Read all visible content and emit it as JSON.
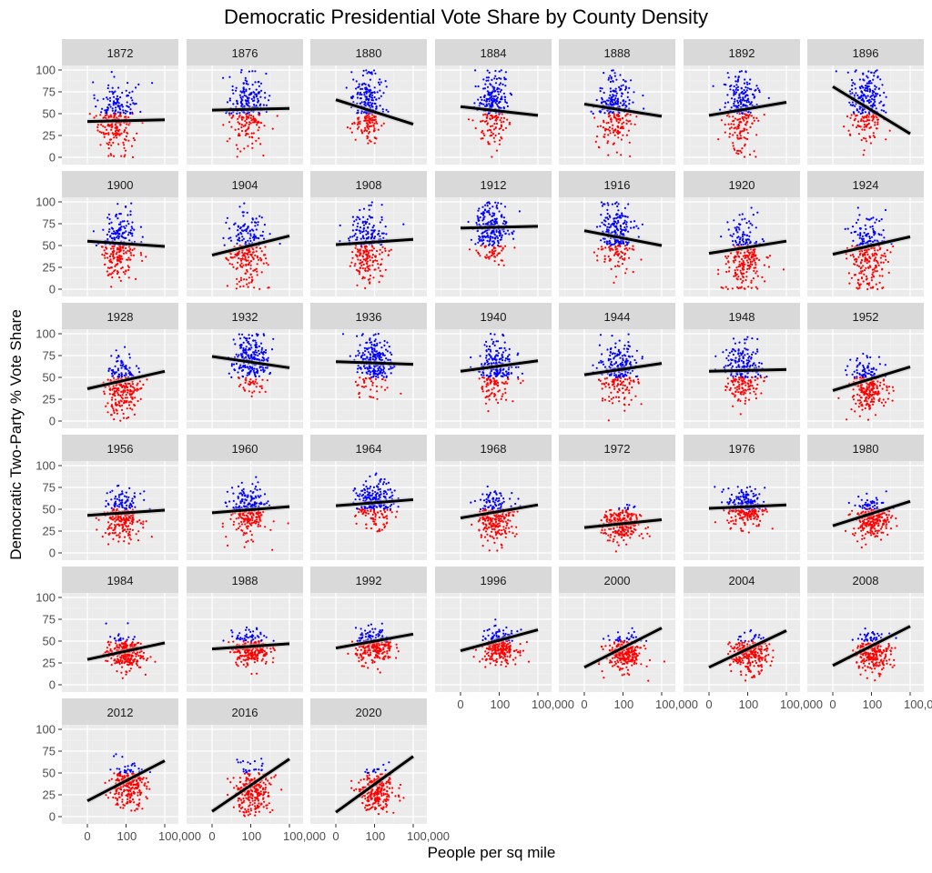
{
  "chart_data": {
    "type": "scatter",
    "title": "Democratic Presidential Vote Share by County Density",
    "xlabel": "People per sq mile",
    "ylabel": "Democratic Two-Party % Vote Share",
    "x_scale": "log",
    "x_ticks": [
      "0",
      "100",
      "100,000"
    ],
    "y_ticks": [
      "0",
      "25",
      "50",
      "75",
      "100"
    ],
    "ylim": [
      0,
      100
    ],
    "grid": true,
    "facet_by": "year",
    "facet_columns": 7,
    "point_colors": {
      "above_50": "#0000ff",
      "below_50": "#ff0000"
    },
    "line_color": "#000000",
    "strip_background": "#d9d9d9",
    "panel_background": "#ebebeb",
    "legend": "none",
    "panels": [
      {
        "year": "1872",
        "fit_start": 41,
        "fit_end": 43,
        "x_center": 0.38,
        "x_spread": 0.12,
        "y_center": 45,
        "y_spread": 25
      },
      {
        "year": "1876",
        "fit_start": 54,
        "fit_end": 56,
        "x_center": 0.45,
        "x_spread": 0.12,
        "y_center": 55,
        "y_spread": 25
      },
      {
        "year": "1880",
        "fit_start": 66,
        "fit_end": 38,
        "x_center": 0.4,
        "x_spread": 0.1,
        "y_center": 58,
        "y_spread": 25
      },
      {
        "year": "1884",
        "fit_start": 58,
        "fit_end": 48,
        "x_center": 0.42,
        "x_spread": 0.1,
        "y_center": 58,
        "y_spread": 24
      },
      {
        "year": "1888",
        "fit_start": 61,
        "fit_end": 47,
        "x_center": 0.4,
        "x_spread": 0.11,
        "y_center": 57,
        "y_spread": 24
      },
      {
        "year": "1892",
        "fit_start": 48,
        "fit_end": 63,
        "x_center": 0.4,
        "x_spread": 0.11,
        "y_center": 55,
        "y_spread": 28
      },
      {
        "year": "1896",
        "fit_start": 81,
        "fit_end": 27,
        "x_center": 0.45,
        "x_spread": 0.12,
        "y_center": 58,
        "y_spread": 26
      },
      {
        "year": "1900",
        "fit_start": 55,
        "fit_end": 49,
        "x_center": 0.4,
        "x_spread": 0.12,
        "y_center": 50,
        "y_spread": 24
      },
      {
        "year": "1904",
        "fit_start": 39,
        "fit_end": 61,
        "x_center": 0.45,
        "x_spread": 0.12,
        "y_center": 45,
        "y_spread": 26
      },
      {
        "year": "1908",
        "fit_start": 51,
        "fit_end": 57,
        "x_center": 0.42,
        "x_spread": 0.12,
        "y_center": 50,
        "y_spread": 24
      },
      {
        "year": "1912",
        "fit_start": 70,
        "fit_end": 72,
        "x_center": 0.4,
        "x_spread": 0.11,
        "y_center": 68,
        "y_spread": 22
      },
      {
        "year": "1916",
        "fit_start": 67,
        "fit_end": 50,
        "x_center": 0.42,
        "x_spread": 0.11,
        "y_center": 60,
        "y_spread": 24
      },
      {
        "year": "1920",
        "fit_start": 41,
        "fit_end": 55,
        "x_center": 0.45,
        "x_spread": 0.12,
        "y_center": 40,
        "y_spread": 24
      },
      {
        "year": "1924",
        "fit_start": 40,
        "fit_end": 60,
        "x_center": 0.45,
        "x_spread": 0.12,
        "y_center": 42,
        "y_spread": 25
      },
      {
        "year": "1928",
        "fit_start": 37,
        "fit_end": 57,
        "x_center": 0.45,
        "x_spread": 0.12,
        "y_center": 38,
        "y_spread": 20
      },
      {
        "year": "1932",
        "fit_start": 74,
        "fit_end": 61,
        "x_center": 0.5,
        "x_spread": 0.12,
        "y_center": 68,
        "y_spread": 20
      },
      {
        "year": "1936",
        "fit_start": 68,
        "fit_end": 65,
        "x_center": 0.5,
        "x_spread": 0.12,
        "y_center": 66,
        "y_spread": 20
      },
      {
        "year": "1940",
        "fit_start": 57,
        "fit_end": 69,
        "x_center": 0.45,
        "x_spread": 0.12,
        "y_center": 58,
        "y_spread": 22
      },
      {
        "year": "1944",
        "fit_start": 53,
        "fit_end": 66,
        "x_center": 0.45,
        "x_spread": 0.12,
        "y_center": 56,
        "y_spread": 22
      },
      {
        "year": "1948",
        "fit_start": 57,
        "fit_end": 59,
        "x_center": 0.45,
        "x_spread": 0.12,
        "y_center": 55,
        "y_spread": 20
      },
      {
        "year": "1952",
        "fit_start": 35,
        "fit_end": 62,
        "x_center": 0.45,
        "x_spread": 0.12,
        "y_center": 40,
        "y_spread": 18
      },
      {
        "year": "1956",
        "fit_start": 43,
        "fit_end": 49,
        "x_center": 0.45,
        "x_spread": 0.12,
        "y_center": 42,
        "y_spread": 17
      },
      {
        "year": "1960",
        "fit_start": 46,
        "fit_end": 53,
        "x_center": 0.47,
        "x_spread": 0.12,
        "y_center": 47,
        "y_spread": 18
      },
      {
        "year": "1964",
        "fit_start": 54,
        "fit_end": 61,
        "x_center": 0.5,
        "x_spread": 0.12,
        "y_center": 56,
        "y_spread": 16
      },
      {
        "year": "1968",
        "fit_start": 40,
        "fit_end": 55,
        "x_center": 0.45,
        "x_spread": 0.12,
        "y_center": 42,
        "y_spread": 18
      },
      {
        "year": "1972",
        "fit_start": 29,
        "fit_end": 38,
        "x_center": 0.48,
        "x_spread": 0.12,
        "y_center": 32,
        "y_spread": 12
      },
      {
        "year": "1976",
        "fit_start": 51,
        "fit_end": 55,
        "x_center": 0.48,
        "x_spread": 0.12,
        "y_center": 52,
        "y_spread": 14
      },
      {
        "year": "1980",
        "fit_start": 31,
        "fit_end": 59,
        "x_center": 0.5,
        "x_spread": 0.12,
        "y_center": 40,
        "y_spread": 14
      },
      {
        "year": "1984",
        "fit_start": 29,
        "fit_end": 48,
        "x_center": 0.48,
        "x_spread": 0.12,
        "y_center": 36,
        "y_spread": 12
      },
      {
        "year": "1988",
        "fit_start": 41,
        "fit_end": 47,
        "x_center": 0.5,
        "x_spread": 0.12,
        "y_center": 42,
        "y_spread": 12
      },
      {
        "year": "1992",
        "fit_start": 42,
        "fit_end": 58,
        "x_center": 0.5,
        "x_spread": 0.12,
        "y_center": 44,
        "y_spread": 12
      },
      {
        "year": "1996",
        "fit_start": 39,
        "fit_end": 63,
        "x_center": 0.5,
        "x_spread": 0.12,
        "y_center": 43,
        "y_spread": 12
      },
      {
        "year": "2000",
        "fit_start": 20,
        "fit_end": 65,
        "x_center": 0.52,
        "x_spread": 0.12,
        "y_center": 36,
        "y_spread": 13
      },
      {
        "year": "2004",
        "fit_start": 20,
        "fit_end": 62,
        "x_center": 0.52,
        "x_spread": 0.12,
        "y_center": 34,
        "y_spread": 13
      },
      {
        "year": "2008",
        "fit_start": 22,
        "fit_end": 67,
        "x_center": 0.52,
        "x_spread": 0.12,
        "y_center": 38,
        "y_spread": 14
      },
      {
        "year": "2012",
        "fit_start": 18,
        "fit_end": 64,
        "x_center": 0.52,
        "x_spread": 0.12,
        "y_center": 35,
        "y_spread": 15
      },
      {
        "year": "2016",
        "fit_start": 6,
        "fit_end": 66,
        "x_center": 0.52,
        "x_spread": 0.12,
        "y_center": 30,
        "y_spread": 16
      },
      {
        "year": "2020",
        "fit_start": 5,
        "fit_end": 69,
        "x_center": 0.52,
        "x_spread": 0.12,
        "y_center": 30,
        "y_spread": 16
      }
    ]
  }
}
